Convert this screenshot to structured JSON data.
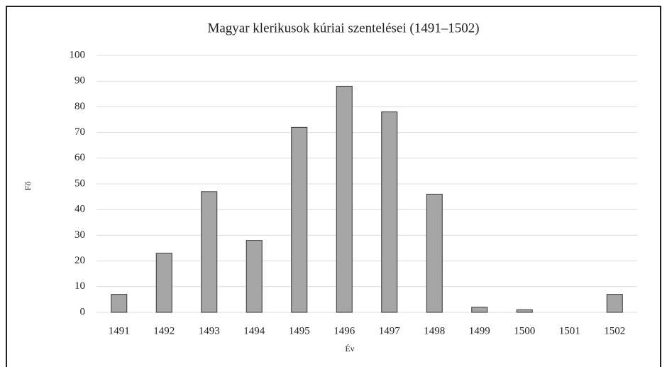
{
  "chart_data": {
    "type": "bar",
    "title": "Magyar klerikusok kúriai szentelései (1491–1502)",
    "x_label": "Év",
    "y_label": "Fő",
    "categories": [
      "1491",
      "1492",
      "1493",
      "1494",
      "1495",
      "1496",
      "1497",
      "1498",
      "1499",
      "1500",
      "1501",
      "1502"
    ],
    "values": [
      7,
      23,
      47,
      28,
      72,
      88,
      78,
      46,
      2,
      1,
      0,
      7
    ],
    "color": "#a6a6a6",
    "ylim": [
      0,
      100
    ],
    "yticks": [
      0,
      10,
      20,
      30,
      40,
      50,
      60,
      70,
      80,
      90,
      100
    ],
    "grid": true
  }
}
